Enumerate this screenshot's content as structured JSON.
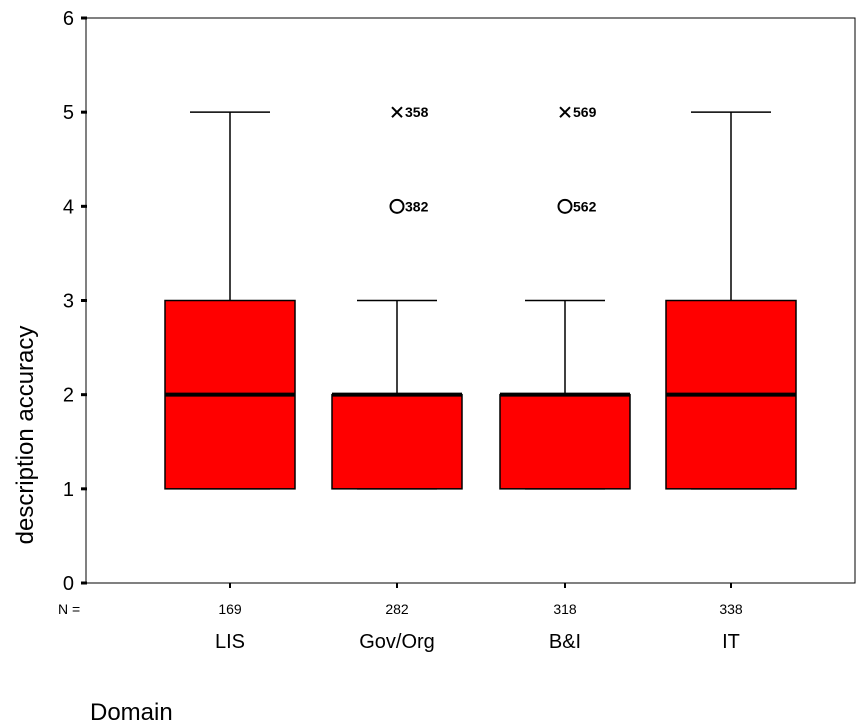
{
  "chart_data": {
    "type": "boxplot",
    "xlabel": "Domain",
    "ylabel": "description accuracy",
    "ylim": [
      0,
      6
    ],
    "yticks": [
      0,
      1,
      2,
      3,
      4,
      5,
      6
    ],
    "n_prefix": "N =",
    "box_color": "#ff0000",
    "categories": [
      "LIS",
      "Gov/Org",
      "B&I",
      "IT"
    ],
    "n": [
      "169",
      "282",
      "318",
      "338"
    ],
    "boxes": [
      {
        "category": "LIS",
        "min": 1,
        "q1": 1,
        "median": 2,
        "q3": 3,
        "max": 5,
        "outliers": [],
        "extremes": []
      },
      {
        "category": "Gov/Org",
        "min": 1,
        "q1": 1,
        "median": 2,
        "q3": 2,
        "max": 3,
        "outliers": [
          {
            "value": 4,
            "label": "382"
          }
        ],
        "extremes": [
          {
            "value": 5,
            "label": "358"
          }
        ]
      },
      {
        "category": "B&I",
        "min": 1,
        "q1": 1,
        "median": 2,
        "q3": 2,
        "max": 3,
        "outliers": [
          {
            "value": 4,
            "label": "562"
          }
        ],
        "extremes": [
          {
            "value": 5,
            "label": "569"
          }
        ]
      },
      {
        "category": "IT",
        "min": 1,
        "q1": 1,
        "median": 2,
        "q3": 3,
        "max": 5,
        "outliers": [],
        "extremes": []
      }
    ]
  }
}
